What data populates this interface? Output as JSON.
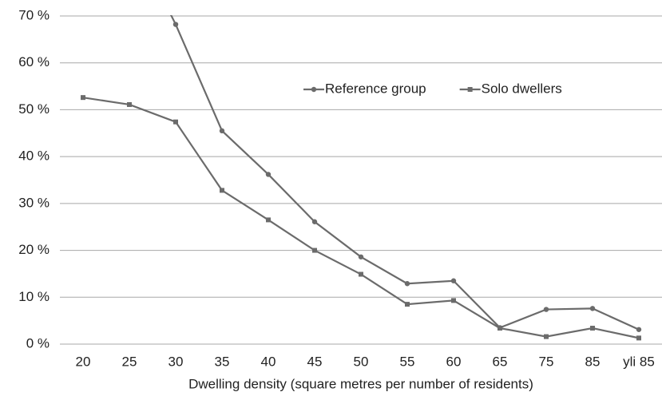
{
  "chart_data": {
    "type": "line",
    "x_label": "Dwelling density (square metres per number of residents)",
    "categories": [
      "20",
      "25",
      "30",
      "35",
      "40",
      "45",
      "50",
      "55",
      "60",
      "65",
      "75",
      "85",
      "yli 85"
    ],
    "series": [
      {
        "name": "Reference group",
        "color": "#6b6b6b",
        "marker": "circle",
        "values": [
          null,
          88,
          68.2,
          45.5,
          36.2,
          26.1,
          18.6,
          12.9,
          13.5,
          3.5,
          7.4,
          7.6,
          3.1
        ]
      },
      {
        "name": "Solo dwellers",
        "color": "#6b6b6b",
        "marker": "square",
        "values": [
          52.6,
          51.1,
          47.4,
          32.8,
          26.5,
          20.0,
          14.9,
          8.5,
          9.3,
          3.4,
          1.6,
          3.4,
          1.3
        ]
      }
    ],
    "ylim": [
      0,
      70
    ],
    "yticks": [
      {
        "value": 0,
        "label": "0 %"
      },
      {
        "value": 10,
        "label": "10 %"
      },
      {
        "value": 20,
        "label": "20 %"
      },
      {
        "value": 30,
        "label": "30 %"
      },
      {
        "value": 40,
        "label": "40 %"
      },
      {
        "value": 50,
        "label": "50 %"
      },
      {
        "value": 60,
        "label": "60 %"
      },
      {
        "value": 70,
        "label": "70 %"
      }
    ],
    "grid": true,
    "legend": "top"
  }
}
